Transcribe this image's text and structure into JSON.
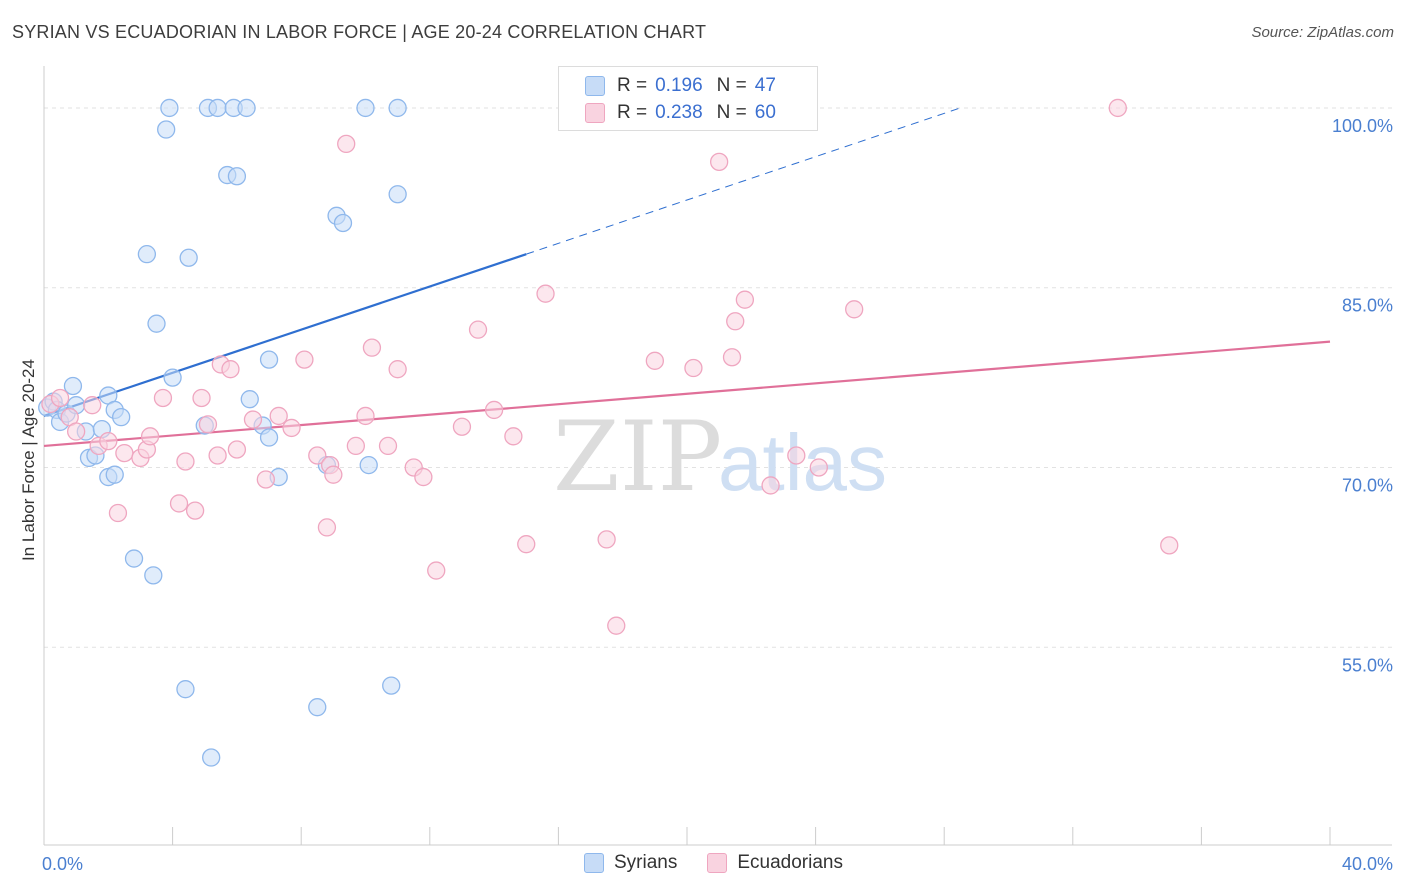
{
  "chart_data": {
    "type": "scatter",
    "title": "SYRIAN VS ECUADORIAN IN LABOR FORCE | AGE 20-24 CORRELATION CHART",
    "source": "Source: ZipAtlas.com",
    "xlabel": "",
    "ylabel": "In Labor Force | Age 20-24",
    "xlim": [
      0,
      40
    ],
    "ylim": [
      38.5,
      103.5
    ],
    "x_tick_labels": [
      "0.0%",
      "40.0%"
    ],
    "y_ticks": [
      {
        "value": 55,
        "label": "55.0%"
      },
      {
        "value": 70,
        "label": "70.0%"
      },
      {
        "value": 85,
        "label": "85.0%"
      },
      {
        "value": 100,
        "label": "100.0%"
      }
    ],
    "watermark": {
      "zip": "ZIP",
      "atlas": "atlas"
    },
    "legend": [
      {
        "r_label": "R =",
        "r": "0.196",
        "n_label": "N =",
        "n": "47"
      },
      {
        "r_label": "R =",
        "r": "0.238",
        "n_label": "N =",
        "n": "60"
      }
    ],
    "series": [
      {
        "name": "Syrians",
        "color": "#8fb8ec",
        "fill": "#c7dcf7",
        "line_color": "#2f6fd0",
        "trend": {
          "x0": 0.0,
          "y0": 74.3,
          "x1": 15.0,
          "y1": 87.8,
          "dash_to_x": 28.5,
          "dash_to_y": 100.0
        },
        "points": [
          [
            0.1,
            75.0
          ],
          [
            0.3,
            75.5
          ],
          [
            0.4,
            74.8
          ],
          [
            0.5,
            73.8
          ],
          [
            0.7,
            74.5
          ],
          [
            0.9,
            76.8
          ],
          [
            1.0,
            75.2
          ],
          [
            1.3,
            73.0
          ],
          [
            1.4,
            70.8
          ],
          [
            1.6,
            71.0
          ],
          [
            1.8,
            73.2
          ],
          [
            2.0,
            69.2
          ],
          [
            2.0,
            76.0
          ],
          [
            2.2,
            69.4
          ],
          [
            2.2,
            74.8
          ],
          [
            2.4,
            74.2
          ],
          [
            2.8,
            62.4
          ],
          [
            3.2,
            87.8
          ],
          [
            3.4,
            61.0
          ],
          [
            3.5,
            82.0
          ],
          [
            3.8,
            98.2
          ],
          [
            3.9,
            100.0
          ],
          [
            4.0,
            77.5
          ],
          [
            4.4,
            51.5
          ],
          [
            4.5,
            87.5
          ],
          [
            5.0,
            73.5
          ],
          [
            5.1,
            100.0
          ],
          [
            5.2,
            45.8
          ],
          [
            5.4,
            100.0
          ],
          [
            5.7,
            94.4
          ],
          [
            5.9,
            100.0
          ],
          [
            6.0,
            94.3
          ],
          [
            6.3,
            100.0
          ],
          [
            6.4,
            75.7
          ],
          [
            6.8,
            73.5
          ],
          [
            7.0,
            72.5
          ],
          [
            7.0,
            79.0
          ],
          [
            7.3,
            69.2
          ],
          [
            8.5,
            50.0
          ],
          [
            8.8,
            70.2
          ],
          [
            9.1,
            91.0
          ],
          [
            9.3,
            90.4
          ],
          [
            10.0,
            100.0
          ],
          [
            10.1,
            70.2
          ],
          [
            10.8,
            51.8
          ],
          [
            11.0,
            100.0
          ],
          [
            11.0,
            92.8
          ]
        ]
      },
      {
        "name": "Ecuadorians",
        "color": "#efa6c0",
        "fill": "#f9d3e0",
        "line_color": "#e07099",
        "trend": {
          "x0": 0.0,
          "y0": 71.8,
          "x1": 40.0,
          "y1": 80.5
        },
        "points": [
          [
            0.2,
            75.3
          ],
          [
            0.5,
            75.8
          ],
          [
            0.8,
            74.2
          ],
          [
            1.0,
            73.0
          ],
          [
            1.5,
            75.2
          ],
          [
            1.7,
            71.8
          ],
          [
            2.0,
            72.2
          ],
          [
            2.3,
            66.2
          ],
          [
            2.5,
            71.2
          ],
          [
            3.0,
            70.8
          ],
          [
            3.2,
            71.5
          ],
          [
            3.3,
            72.6
          ],
          [
            3.7,
            75.8
          ],
          [
            4.2,
            67.0
          ],
          [
            4.4,
            70.5
          ],
          [
            4.7,
            66.4
          ],
          [
            4.9,
            75.8
          ],
          [
            5.1,
            73.6
          ],
          [
            5.4,
            71.0
          ],
          [
            5.5,
            78.6
          ],
          [
            5.8,
            78.2
          ],
          [
            6.0,
            71.5
          ],
          [
            6.5,
            74.0
          ],
          [
            6.9,
            69.0
          ],
          [
            7.3,
            74.3
          ],
          [
            7.7,
            73.3
          ],
          [
            8.1,
            79.0
          ],
          [
            8.5,
            71.0
          ],
          [
            8.8,
            65.0
          ],
          [
            8.9,
            70.2
          ],
          [
            9.0,
            69.4
          ],
          [
            9.4,
            97.0
          ],
          [
            9.7,
            71.8
          ],
          [
            10.0,
            74.3
          ],
          [
            10.2,
            80.0
          ],
          [
            10.7,
            71.8
          ],
          [
            11.0,
            78.2
          ],
          [
            11.5,
            70.0
          ],
          [
            11.8,
            69.2
          ],
          [
            12.2,
            61.4
          ],
          [
            13.0,
            73.4
          ],
          [
            13.5,
            81.5
          ],
          [
            14.0,
            74.8
          ],
          [
            14.6,
            72.6
          ],
          [
            15.0,
            63.6
          ],
          [
            15.6,
            84.5
          ],
          [
            17.5,
            64.0
          ],
          [
            17.8,
            56.8
          ],
          [
            19.0,
            78.9
          ],
          [
            20.2,
            78.3
          ],
          [
            21.0,
            95.5
          ],
          [
            21.4,
            79.2
          ],
          [
            21.5,
            82.2
          ],
          [
            21.8,
            84.0
          ],
          [
            22.6,
            68.5
          ],
          [
            23.4,
            71.0
          ],
          [
            24.1,
            70.0
          ],
          [
            25.2,
            83.2
          ],
          [
            33.4,
            100.0
          ],
          [
            35.0,
            63.5
          ]
        ]
      }
    ]
  }
}
